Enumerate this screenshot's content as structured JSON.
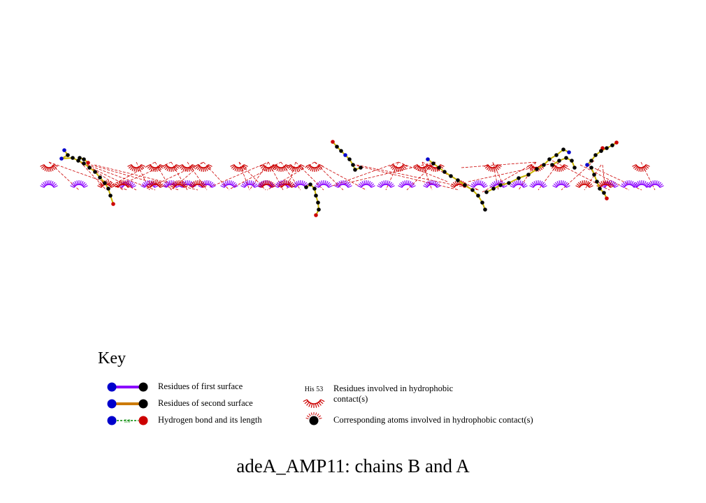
{
  "colors": {
    "hydrophobic": "#cc0000",
    "first_surface": "#8a00ff",
    "second_surface": "#cc7a00",
    "hbond": "#008800",
    "nitrogen": "#0000cc",
    "oxygen": "#cc0000",
    "carbon": "#000000",
    "bond": "#c8b400",
    "contact_line": "#cc0000"
  },
  "key": {
    "title": "Key",
    "first_surface": "Residues of first surface",
    "second_surface": "Residues of second surface",
    "hbond": "Hydrogen bond and its length",
    "hbond_length": "3.0",
    "hydrophobic_example": "His 53",
    "hydrophobic": "Residues involved in hydrophobic contact(s)",
    "atoms": "Corresponding atoms involved in hydrophobic contact(s)"
  },
  "caption": "adeA_AMP11: chains B and A"
}
